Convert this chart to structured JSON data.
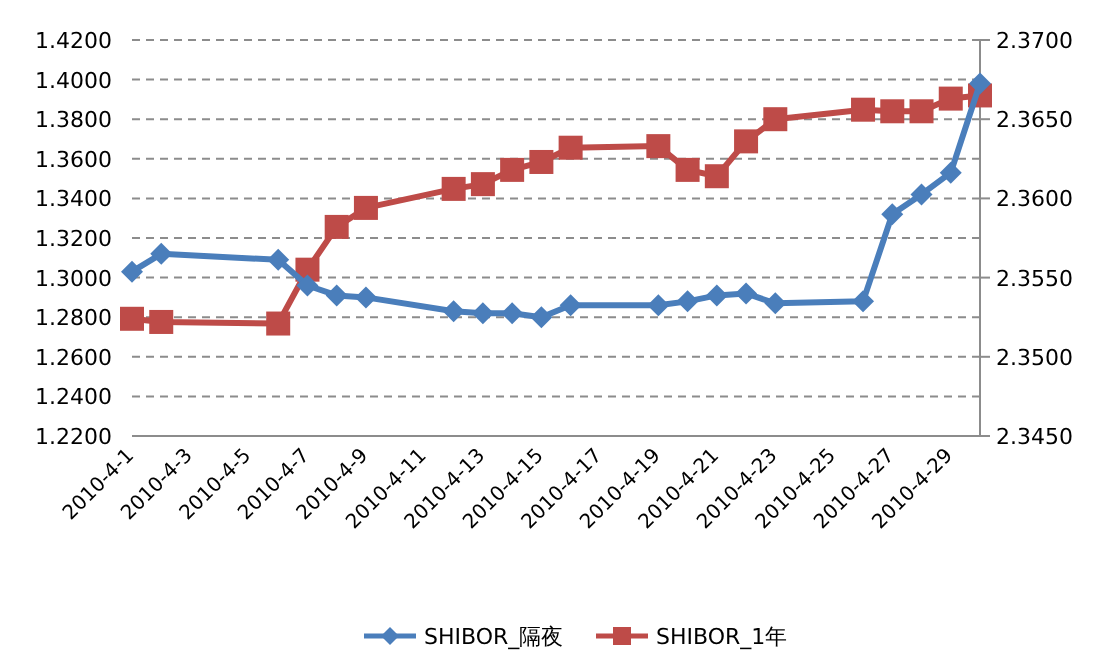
{
  "chart_data": {
    "type": "line",
    "x": [
      "2010-04-01",
      "2010-04-02",
      "2010-04-06",
      "2010-04-07",
      "2010-04-08",
      "2010-04-09",
      "2010-04-12",
      "2010-04-13",
      "2010-04-14",
      "2010-04-15",
      "2010-04-16",
      "2010-04-19",
      "2010-04-20",
      "2010-04-21",
      "2010-04-22",
      "2010-04-23",
      "2010-04-26",
      "2010-04-27",
      "2010-04-28",
      "2010-04-29",
      "2010-04-30"
    ],
    "series": [
      {
        "name": "SHIBOR_隔夜",
        "color": "#4a7ebb",
        "marker": "diamond",
        "values": [
          1.303,
          1.312,
          1.309,
          1.296,
          1.291,
          1.29,
          1.283,
          1.282,
          1.282,
          1.28,
          1.286,
          1.286,
          1.288,
          1.291,
          1.292,
          1.287,
          1.288,
          1.332,
          1.342,
          1.353,
          1.398
        ]
      },
      {
        "name": "SHIBOR_1年",
        "color": "#be4b48",
        "marker": "square",
        "axis": "y2",
        "values": [
          2.3524,
          2.3522,
          2.3521,
          2.3555,
          2.3582,
          2.3594,
          2.3606,
          2.3609,
          2.3618,
          2.3623,
          2.3632,
          2.3633,
          2.3618,
          2.3614,
          2.3636,
          2.365,
          2.3656,
          2.3655,
          2.3655,
          2.3663,
          2.3665
        ]
      }
    ],
    "xlim": [
      "2010-04-01",
      "2010-04-30"
    ],
    "xticks": [
      {
        "value": "2010-04-01",
        "label": "2010-4-1"
      },
      {
        "value": "2010-04-03",
        "label": "2010-4-3"
      },
      {
        "value": "2010-04-05",
        "label": "2010-4-5"
      },
      {
        "value": "2010-04-07",
        "label": "2010-4-7"
      },
      {
        "value": "2010-04-09",
        "label": "2010-4-9"
      },
      {
        "value": "2010-04-11",
        "label": "2010-4-11"
      },
      {
        "value": "2010-04-13",
        "label": "2010-4-13"
      },
      {
        "value": "2010-04-15",
        "label": "2010-4-15"
      },
      {
        "value": "2010-04-17",
        "label": "2010-4-17"
      },
      {
        "value": "2010-04-19",
        "label": "2010-4-19"
      },
      {
        "value": "2010-04-21",
        "label": "2010-4-21"
      },
      {
        "value": "2010-04-23",
        "label": "2010-4-23"
      },
      {
        "value": "2010-04-25",
        "label": "2010-4-25"
      },
      {
        "value": "2010-04-27",
        "label": "2010-4-27"
      },
      {
        "value": "2010-04-29",
        "label": "2010-4-29"
      }
    ],
    "ylim": [
      1.22,
      1.42
    ],
    "yticks": [
      {
        "value": 1.22,
        "label": "1.2200"
      },
      {
        "value": 1.24,
        "label": "1.2400"
      },
      {
        "value": 1.26,
        "label": "1.2600"
      },
      {
        "value": 1.28,
        "label": "1.2800"
      },
      {
        "value": 1.3,
        "label": "1.3000"
      },
      {
        "value": 1.32,
        "label": "1.3200"
      },
      {
        "value": 1.34,
        "label": "1.3400"
      },
      {
        "value": 1.36,
        "label": "1.3600"
      },
      {
        "value": 1.38,
        "label": "1.3800"
      },
      {
        "value": 1.4,
        "label": "1.4000"
      },
      {
        "value": 1.42,
        "label": "1.4200"
      }
    ],
    "y2lim": [
      2.345,
      2.37
    ],
    "y2ticks": [
      {
        "value": 2.345,
        "label": "2.3450"
      },
      {
        "value": 2.35,
        "label": "2.3500"
      },
      {
        "value": 2.355,
        "label": "2.3550"
      },
      {
        "value": 2.36,
        "label": "2.3600"
      },
      {
        "value": 2.365,
        "label": "2.3650"
      },
      {
        "value": 2.37,
        "label": "2.3700"
      }
    ],
    "grid": "y",
    "legend": "bottom"
  }
}
